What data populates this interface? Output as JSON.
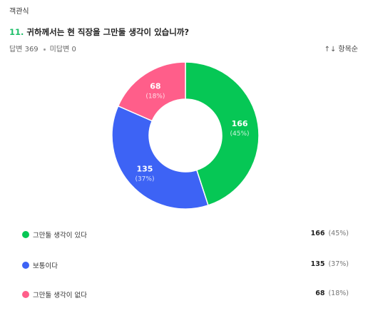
{
  "question": {
    "type_label": "객관식",
    "number": "11.",
    "title": "귀하께서는 현 직장을 그만둘 생각이 있습니까?"
  },
  "stats": {
    "answered": "답변 369",
    "unanswered": "미답변 0"
  },
  "sort": {
    "icon": "sort-arrows-icon",
    "label": "항목순"
  },
  "colors": {
    "green": "#06c755",
    "blue": "#3d63f5",
    "pink": "#ff5e8a"
  },
  "chart_data": {
    "type": "pie",
    "title": "",
    "categories": [
      "그만둘 생각이 있다",
      "보통이다",
      "그만둘 생각이 없다"
    ],
    "values": [
      166,
      135,
      68
    ],
    "percent_labels": [
      "(45%)",
      "(37%)",
      "(18%)"
    ],
    "colors": [
      "#06c755",
      "#3d63f5",
      "#ff5e8a"
    ],
    "donut": true,
    "legend": "bottom"
  },
  "legend": [
    {
      "label": "그만둘 생각이 있다",
      "count": "166",
      "percent": "(45%)"
    },
    {
      "label": "보통이다",
      "count": "135",
      "percent": "(37%)"
    },
    {
      "label": "그만둘 생각이 없다",
      "count": "68",
      "percent": "(18%)"
    }
  ]
}
